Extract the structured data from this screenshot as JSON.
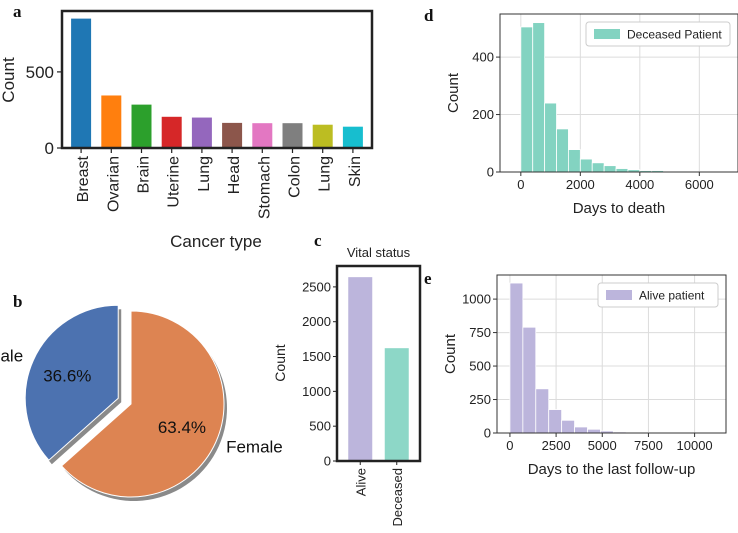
{
  "panels": {
    "a": {
      "label": "a",
      "chart_data": {
        "type": "bar",
        "title": "",
        "xlabel": "Cancer type",
        "ylabel": "Count",
        "ylim": [
          0,
          900
        ],
        "yticks": [
          0,
          500
        ],
        "categories": [
          "Breast",
          "Ovarian",
          "Brain",
          "Uterine",
          "Lung",
          "Head",
          "Stomach",
          "Colon",
          "Lung",
          "Skin"
        ],
        "values": [
          850,
          345,
          285,
          205,
          200,
          165,
          163,
          163,
          153,
          140
        ],
        "colors": [
          "#1f77b4",
          "#ff7f0e",
          "#2ca02c",
          "#d62728",
          "#9467bd",
          "#8c564b",
          "#e377c2",
          "#7f7f7f",
          "#bcbd22",
          "#17becf"
        ]
      }
    },
    "b": {
      "label": "b",
      "chart_data": {
        "type": "pie",
        "labels": [
          "Male",
          "Female"
        ],
        "values": [
          36.6,
          63.4
        ],
        "pct_labels": [
          "36.6%",
          "63.4%"
        ],
        "colors": [
          "#4c72b0",
          "#dd8452"
        ],
        "explode": "Male"
      }
    },
    "c": {
      "label": "c",
      "chart_data": {
        "type": "bar",
        "title": "Vital status",
        "xlabel": "",
        "ylabel": "Count",
        "ylim": [
          0,
          2800
        ],
        "yticks": [
          0,
          500,
          1000,
          1500,
          2000,
          2500
        ],
        "categories": [
          "Alive",
          "Deceased"
        ],
        "values": [
          2640,
          1620
        ],
        "colors": [
          "#bcb5dc",
          "#8dd7c7"
        ]
      }
    },
    "d": {
      "label": "d",
      "chart_data": {
        "type": "bar",
        "title": "",
        "xlabel": "Days to death",
        "ylabel": "Count",
        "xlim": [
          -700,
          7300
        ],
        "ylim": [
          0,
          550
        ],
        "xticks": [
          0,
          2000,
          4000,
          6000
        ],
        "yticks": [
          0,
          200,
          400
        ],
        "bin_width": 400,
        "bin_starts": [
          0,
          400,
          800,
          1200,
          1600,
          2000,
          2400,
          2800,
          3200,
          3600,
          4000,
          4400,
          4800,
          5200,
          5600,
          6000,
          6400,
          6800
        ],
        "values": [
          505,
          520,
          240,
          150,
          78,
          45,
          32,
          22,
          12,
          8,
          5,
          5,
          3,
          2,
          1,
          1,
          1,
          1
        ],
        "color": "#83d3c1",
        "legend": "Deceased Patient",
        "legend_loc": "top-right",
        "grid": true
      }
    },
    "e": {
      "label": "e",
      "chart_data": {
        "type": "bar",
        "title": "",
        "xlabel": "Days to the last follow-up",
        "ylabel": "Count",
        "xlim": [
          -700,
          11700
        ],
        "ylim": [
          0,
          1180
        ],
        "xticks": [
          0,
          2500,
          5000,
          7500,
          10000
        ],
        "yticks": [
          0,
          250,
          500,
          750,
          1000
        ],
        "bin_width": 700,
        "bin_starts": [
          0,
          700,
          1400,
          2100,
          2800,
          3500,
          4200,
          4900,
          5600,
          6300,
          7000,
          7700,
          8400,
          9100,
          9800,
          10500
        ],
        "values": [
          1120,
          790,
          330,
          175,
          95,
          45,
          28,
          15,
          8,
          5,
          4,
          3,
          2,
          2,
          1,
          1
        ],
        "color": "#bcb5dc",
        "legend": "Alive patient",
        "legend_loc": "top-right",
        "grid": true
      }
    }
  }
}
